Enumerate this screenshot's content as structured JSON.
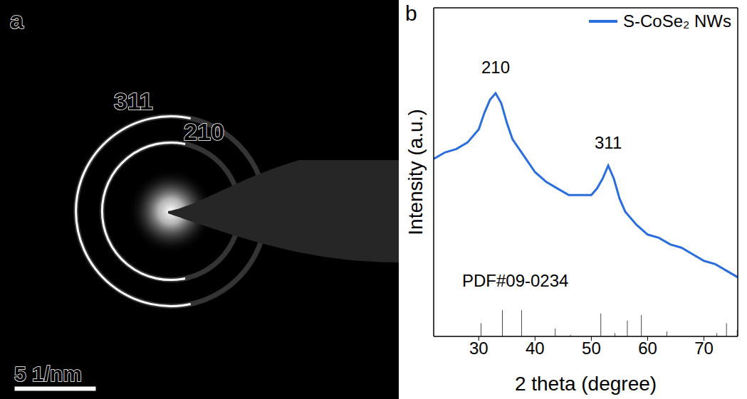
{
  "panel_a": {
    "letter": "a",
    "type": "diffraction pattern",
    "rings": [
      {
        "label": "311",
        "radius": 5.8
      },
      {
        "label": "210",
        "radius": 4.2
      }
    ],
    "scale_bar": {
      "value": 5,
      "label": "5 1/nm"
    }
  },
  "panel_b": {
    "letter": "b"
  },
  "chart_data": {
    "type": "line",
    "x_label": "2 theta (degree)",
    "y_label": "Intensity (a.u.)",
    "xlim": [
      22,
      76
    ],
    "xticks": [
      30,
      40,
      50,
      60,
      70
    ],
    "ylim": [
      0,
      100
    ],
    "yticks": [],
    "tick_labels": "x",
    "grid": false,
    "legend": "upper right",
    "series": [
      {
        "name": "S-CoSe₂ NWs",
        "color": "#2a6ede",
        "x": [
          22,
          24,
          26,
          28,
          30,
          31,
          32,
          33,
          34,
          35,
          36,
          38,
          40,
          42,
          44,
          46,
          48,
          50,
          51,
          52,
          53,
          54,
          55,
          56,
          58,
          60,
          62,
          64,
          66,
          68,
          70,
          72,
          74,
          76
        ],
        "values": [
          54,
          56,
          57,
          59,
          63,
          68,
          72,
          74,
          71,
          65,
          60,
          55,
          50,
          47,
          45,
          43,
          43,
          43,
          45,
          48,
          52,
          48,
          42,
          38,
          34,
          31,
          30,
          28,
          27,
          25,
          23,
          22,
          20,
          18
        ]
      }
    ],
    "reference": {
      "type": "bar",
      "color": "#000000",
      "x": [
        30.4,
        34.2,
        37.6,
        43.6,
        46.3,
        51.7,
        54.2,
        56.4,
        58.9,
        63.4,
        72.3,
        74.0,
        75.9
      ],
      "values": [
        4,
        8,
        8,
        2.4,
        0.5,
        7,
        1,
        4.8,
        6.5,
        1.5,
        1,
        4,
        2
      ]
    },
    "annotations": [
      {
        "text": "210",
        "x": 33,
        "y": 82
      },
      {
        "text": "311",
        "x": 53,
        "y": 59
      },
      {
        "text": "PDF#09-0234",
        "x": 36.5,
        "y": 17
      }
    ]
  }
}
